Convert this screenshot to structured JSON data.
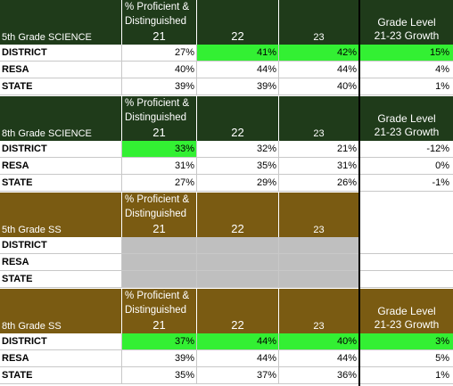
{
  "pct_label_line1": "% Proficient &",
  "pct_label_line2": "Distinguished",
  "year_21": "21",
  "year_22": "22",
  "year_23": "23",
  "growth_line1": "Grade Level",
  "growth_line2": "21-23 Growth",
  "sections": [
    {
      "title": "5th Grade SCIENCE",
      "theme": "green",
      "show_growth_header": true,
      "rows": [
        {
          "label": "DISTRICT",
          "y21": "27%",
          "y22": "41%",
          "y23": "42%",
          "growth": "15%",
          "hl21": false,
          "hl22": true,
          "hl23": true,
          "hlg": true
        },
        {
          "label": "RESA",
          "y21": "40%",
          "y22": "44%",
          "y23": "44%",
          "growth": "4%"
        },
        {
          "label": "STATE",
          "y21": "39%",
          "y22": "39%",
          "y23": "40%",
          "growth": "1%"
        }
      ]
    },
    {
      "title": "8th Grade SCIENCE",
      "theme": "green",
      "show_growth_header": true,
      "rows": [
        {
          "label": "DISTRICT",
          "y21": "33%",
          "y22": "32%",
          "y23": "21%",
          "growth": "-12%",
          "hl21": true
        },
        {
          "label": "RESA",
          "y21": "31%",
          "y22": "35%",
          "y23": "31%",
          "growth": "0%"
        },
        {
          "label": "STATE",
          "y21": "27%",
          "y22": "29%",
          "y23": "26%",
          "growth": "-1%"
        }
      ]
    },
    {
      "title": "5th Grade SS",
      "theme": "brown",
      "show_growth_header": false,
      "rows": [
        {
          "label": "DISTRICT",
          "y21": "",
          "y22": "",
          "y23": "",
          "growth": "",
          "gray": true
        },
        {
          "label": "RESA",
          "y21": "",
          "y22": "",
          "y23": "",
          "growth": "",
          "gray": true
        },
        {
          "label": "STATE",
          "y21": "",
          "y22": "",
          "y23": "",
          "growth": "",
          "gray": true
        }
      ]
    },
    {
      "title": "8th Grade SS",
      "theme": "brown",
      "show_growth_header": true,
      "rows": [
        {
          "label": "DISTRICT",
          "y21": "37%",
          "y22": "44%",
          "y23": "40%",
          "growth": "3%",
          "hl21": true,
          "hl22": true,
          "hl23": true,
          "hlg": true
        },
        {
          "label": "RESA",
          "y21": "39%",
          "y22": "44%",
          "y23": "44%",
          "growth": "5%"
        },
        {
          "label": "STATE",
          "y21": "35%",
          "y22": "37%",
          "y23": "36%",
          "growth": "1%"
        }
      ]
    }
  ]
}
